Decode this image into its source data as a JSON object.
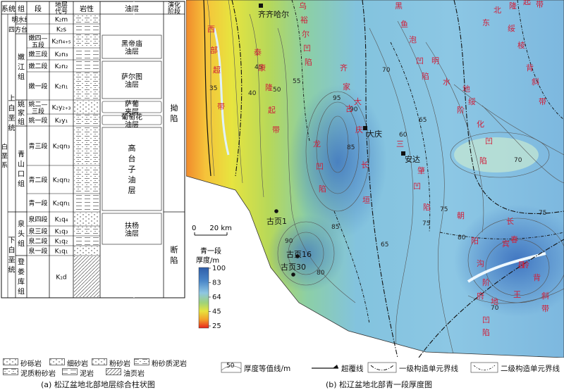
{
  "column": {
    "headers": [
      "系统",
      "组",
      "段",
      "地层代号",
      "岩性",
      "油层",
      "演化阶段"
    ],
    "system_upper": "上白垩统",
    "system_lower": "下白垩统",
    "system_all": "白垩系",
    "stage_top": "拗陷",
    "stage_bottom": "断陷",
    "groups": [
      {
        "name": "明水组",
        "rows": [
          0,
          0
        ]
      },
      {
        "name": "四方台组",
        "rows": [
          1,
          1
        ]
      },
      {
        "name": "嫩江组",
        "rows": [
          2,
          5
        ]
      },
      {
        "name": "姚家组",
        "rows": [
          6,
          7
        ]
      },
      {
        "name": "青山口组",
        "rows": [
          8,
          10
        ]
      },
      {
        "name": "泉头组",
        "rows": [
          11,
          14
        ]
      },
      {
        "name": "登娄库组",
        "rows": [
          15,
          15
        ]
      }
    ],
    "members": [
      {
        "name": "",
        "code": "K₂m"
      },
      {
        "name": "",
        "code": "K₂s"
      },
      {
        "name": "嫩四—五段",
        "code": "K₂n₄₊₅"
      },
      {
        "name": "嫩三段",
        "code": "K₂n₃"
      },
      {
        "name": "嫩二段",
        "code": "K₂n₂"
      },
      {
        "name": "嫩一段",
        "code": "K₂n₁"
      },
      {
        "name": "姚二—三段",
        "code": "K₂y₂₊₃"
      },
      {
        "name": "姚一段",
        "code": "K₂y₁"
      },
      {
        "name": "青三段",
        "code": "K₂qn₃"
      },
      {
        "name": "青二段",
        "code": "K₂qn₂"
      },
      {
        "name": "青一段",
        "code": "K₂qn₁"
      },
      {
        "name": "泉四段",
        "code": "K₁q₄"
      },
      {
        "name": "泉三段",
        "code": "K₁q₃"
      },
      {
        "name": "泉二段",
        "code": "K₁q₂"
      },
      {
        "name": "泉一段",
        "code": "K₁q₁"
      },
      {
        "name": "",
        "code": "K₁d"
      }
    ],
    "oil_layers": [
      "黑帝庙油层",
      "萨尔图油层",
      "萨葡夹层",
      "葡萄花油层",
      "高台子油层",
      "扶杨油层"
    ]
  },
  "lith_legend": [
    "砂砾岩",
    "细砂岩",
    "粉砂岩",
    "粉砂质泥岩",
    "泥质粉砂岩",
    "泥岩",
    "油页岩"
  ],
  "caption_a": "(a) 松辽盆地北部地层综合柱状图",
  "caption_b": "(b) 松辽盆地北部青一段厚度图",
  "map": {
    "cities": [
      "齐齐哈尔",
      "大庆",
      "安达"
    ],
    "wells": [
      "古页1",
      "古页16",
      "古页30"
    ],
    "scale_label": "0      20 km",
    "colorbar_title": "青一段\n厚度/m",
    "colorbar_ticks": [
      "100",
      "83",
      "64",
      "45",
      "25"
    ],
    "contour_labels": [
      "35",
      "40",
      "45",
      "50",
      "55",
      "60",
      "65",
      "70",
      "75",
      "80",
      "85",
      "90",
      "95"
    ],
    "regions": [
      {
        "text": "西部超带"
      },
      {
        "text": "乌裕尔凹陷"
      },
      {
        "text": "泰康隆起带"
      },
      {
        "text": "齐家古龙凹陷"
      },
      {
        "text": "大庆长垣"
      },
      {
        "text": "黑鱼泡凹陷"
      },
      {
        "text": "明水阶地"
      },
      {
        "text": "三肇凹陷"
      },
      {
        "text": "东北隆起带"
      },
      {
        "text": "绥棱背斜带"
      },
      {
        "text": "绥化凹陷"
      },
      {
        "text": "朝阳沟阶地"
      },
      {
        "text": "长春岭背斜带"
      },
      {
        "text": "宾县王府凹陷"
      }
    ]
  },
  "map_legend": {
    "contour": "厚度等值线/m",
    "contour_sample": "50",
    "overlap": "超覆线",
    "first_order": "一级构造单元界线",
    "second_order": "二级构造单元界线"
  }
}
